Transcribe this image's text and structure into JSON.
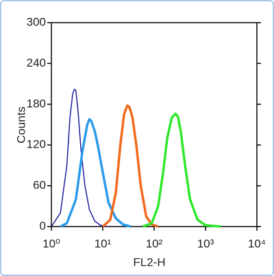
{
  "chart_data": {
    "type": "line",
    "xlabel": "FL2-H",
    "ylabel": "Counts",
    "log_x": true,
    "xlim": [
      1,
      10000
    ],
    "xticks": [
      {
        "value": 1,
        "label": "10⁰"
      },
      {
        "value": 10,
        "label": "10¹"
      },
      {
        "value": 100,
        "label": "10²"
      },
      {
        "value": 1000,
        "label": "10³"
      },
      {
        "value": 10000,
        "label": "10⁴"
      }
    ],
    "ylim": [
      0,
      300
    ],
    "yticks": [
      0,
      60,
      120,
      180,
      240,
      300
    ],
    "series": [
      {
        "color": "#1c1c9c",
        "x": [
          1,
          1.5,
          2,
          2.3,
          2.6,
          2.8,
          3,
          3.3,
          3.8,
          4.5,
          5.5,
          7,
          9,
          12
        ],
        "values": [
          0,
          20,
          90,
          160,
          195,
          202,
          200,
          170,
          110,
          60,
          25,
          8,
          2,
          0
        ]
      },
      {
        "color": "#2b9bea",
        "x": [
          1.5,
          2,
          3,
          4,
          5,
          5.5,
          6,
          7,
          8,
          10,
          13,
          18,
          25,
          35
        ],
        "values": [
          0,
          5,
          40,
          110,
          150,
          158,
          155,
          140,
          120,
          80,
          35,
          12,
          3,
          0
        ]
      },
      {
        "color": "#f26a1b",
        "x": [
          10,
          14,
          18,
          22,
          26,
          30,
          33,
          38,
          45,
          55,
          70,
          90,
          120
        ],
        "values": [
          0,
          10,
          50,
          120,
          165,
          178,
          176,
          160,
          120,
          60,
          15,
          3,
          0
        ]
      },
      {
        "color": "#2ee82b",
        "x": [
          60,
          90,
          120,
          150,
          180,
          220,
          260,
          290,
          330,
          400,
          500,
          700,
          1000,
          2000
        ],
        "values": [
          0,
          5,
          30,
          80,
          130,
          160,
          166,
          162,
          140,
          90,
          40,
          10,
          2,
          0
        ]
      }
    ]
  }
}
